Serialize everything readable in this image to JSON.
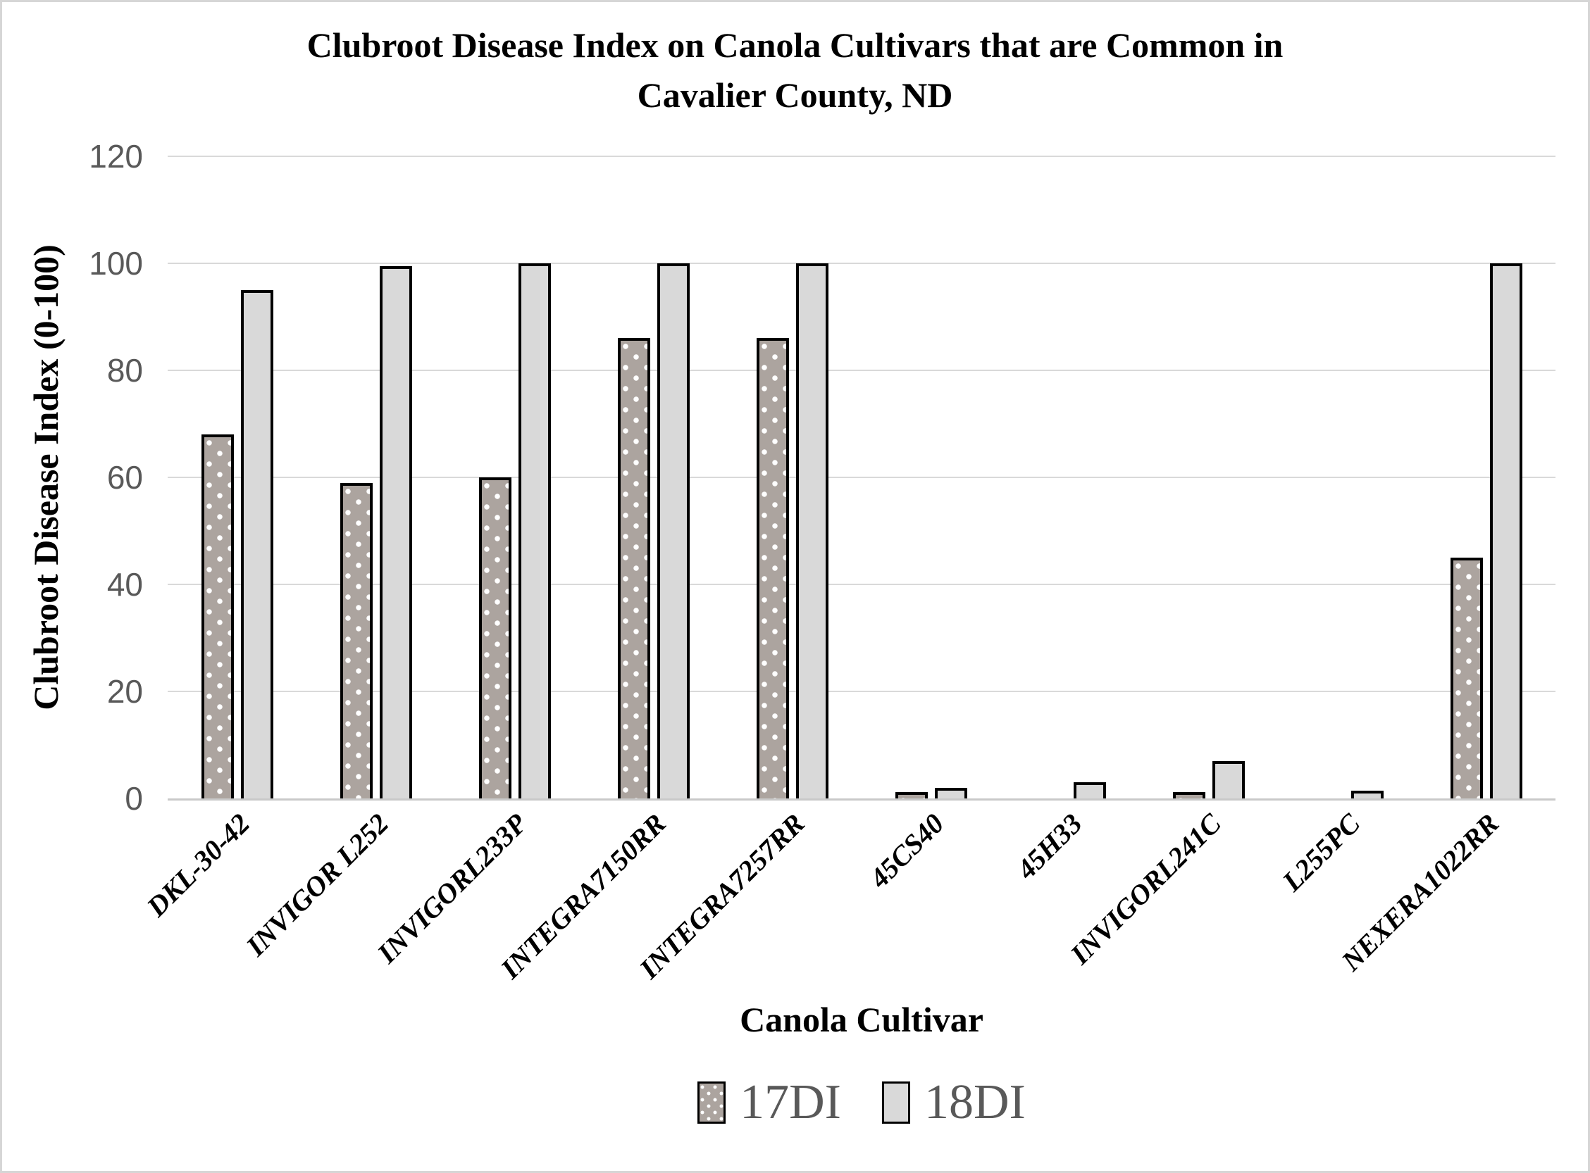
{
  "chart_data": {
    "type": "bar",
    "title_lines": [
      "Clubroot Disease Index on Canola Cultivars that are Common in",
      "Cavalier County, ND"
    ],
    "title": "Clubroot Disease Index on Canola Cultivars that are Common in Cavalier County, ND",
    "xlabel": "Canola Cultivar",
    "ylabel": "Clubroot Disease Index (0-100)",
    "ylim": [
      0,
      120
    ],
    "yticks": [
      0,
      20,
      40,
      60,
      80,
      100,
      120
    ],
    "grid": "horizontal",
    "legend_position": "bottom",
    "categories": [
      "DKL-30-42",
      "INVIGOR L252",
      "INVIGORL233P",
      "INTEGRA7150RR",
      "INTEGRA7257RR",
      "45CS40",
      "45H33",
      "INVIGORL241C",
      "L255PC",
      "NEXERA1022RR"
    ],
    "series": [
      {
        "name": "17DI",
        "values": [
          68,
          59,
          60,
          86,
          86,
          1,
          0,
          1,
          0,
          45
        ]
      },
      {
        "name": "18DI",
        "values": [
          95,
          99.5,
          100,
          100,
          100,
          2,
          3,
          7,
          1.5,
          100
        ]
      }
    ],
    "colors": {
      "series_17di_fill": "#aca49f",
      "series_17di_pattern_dots": "#ffffff",
      "series_18di_fill": "#d9d9d9",
      "bar_border": "#000000",
      "gridline": "#d9d9d9",
      "axis_line": "#c9c9c9",
      "tick_label_text": "#595959",
      "legend_text": "#595959",
      "title_text": "#000000"
    }
  }
}
